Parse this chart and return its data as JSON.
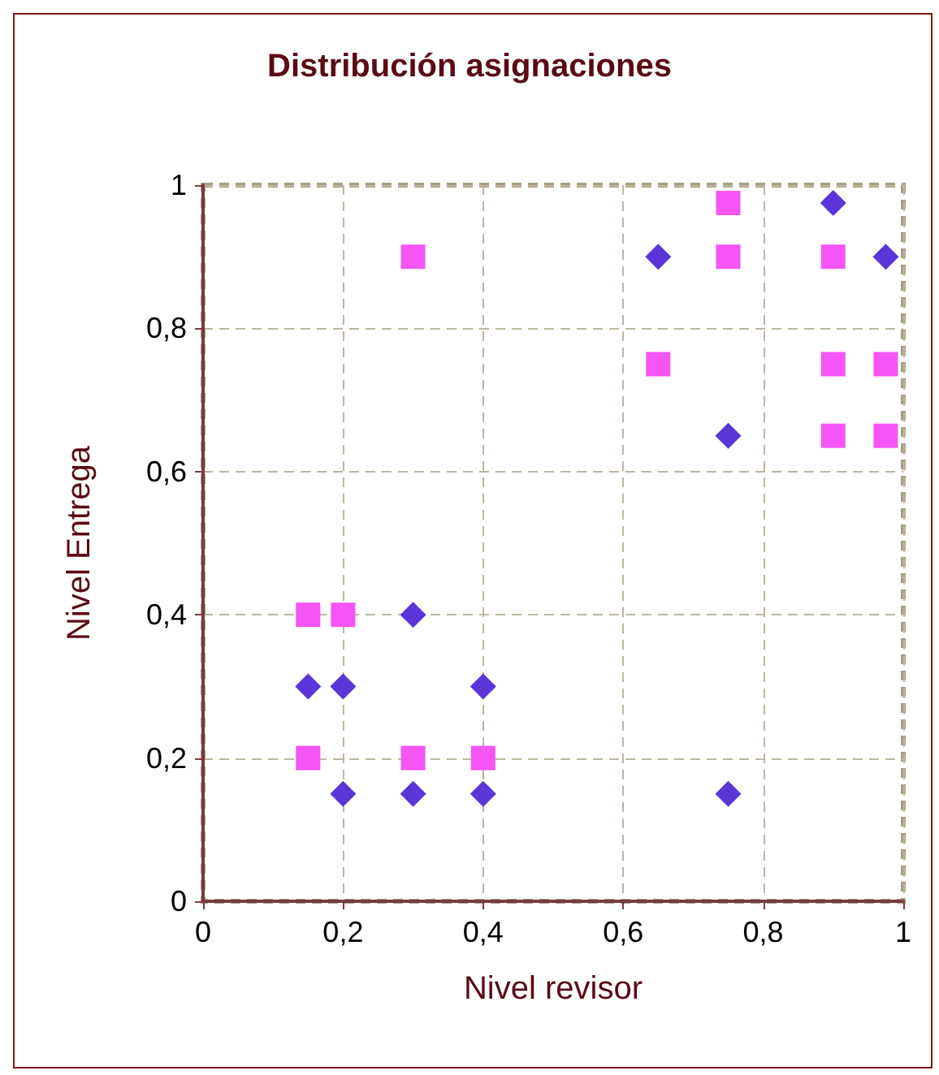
{
  "chart_data": {
    "type": "scatter",
    "title": "Distribución asignaciones",
    "xlabel": "Nivel revisor",
    "ylabel": "Nivel Entrega",
    "xlim": [
      0,
      1
    ],
    "xticks": [
      0,
      {
        "value": 0.2,
        "label": "0,2"
      },
      {
        "value": 0.4,
        "label": "0,4"
      },
      {
        "value": 0.6,
        "label": "0,6"
      },
      {
        "value": 0.8,
        "label": "0,8"
      },
      1
    ],
    "ylim": [
      0,
      1
    ],
    "yticks": [
      0,
      {
        "value": 0.2,
        "label": "0,2"
      },
      {
        "value": 0.4,
        "label": "0,4"
      },
      {
        "value": 0.6,
        "label": "0,6"
      },
      {
        "value": 0.8,
        "label": "0,8"
      },
      1
    ],
    "grid": true,
    "series": [
      {
        "color": "#5a35d8",
        "marker": "diamond",
        "x": [
          0.15,
          0.2,
          0.3,
          0.4,
          0.2,
          0.3,
          0.4,
          0.75,
          0.65,
          0.75,
          0.9,
          0.975
        ],
        "values": [
          0.3,
          0.3,
          0.4,
          0.3,
          0.15,
          0.15,
          0.15,
          0.15,
          0.9,
          0.65,
          0.975,
          0.9
        ]
      },
      {
        "color": "#f455f4",
        "marker": "square",
        "x": [
          0.15,
          0.2,
          0.15,
          0.3,
          0.4,
          0.3,
          0.65,
          0.75,
          0.75,
          0.9,
          0.9,
          0.9,
          0.975,
          0.975
        ],
        "values": [
          0.4,
          0.4,
          0.2,
          0.2,
          0.2,
          0.9,
          0.75,
          0.975,
          0.9,
          0.9,
          0.75,
          0.65,
          0.75,
          0.65
        ]
      }
    ]
  }
}
